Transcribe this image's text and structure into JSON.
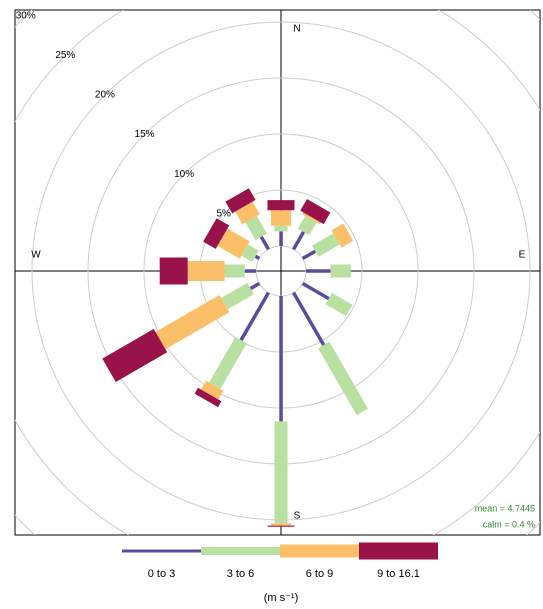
{
  "chart_data": {
    "type": "windrose",
    "categories": [
      0,
      30,
      60,
      90,
      120,
      150,
      180,
      210,
      240,
      270,
      300,
      330
    ],
    "compass": [
      "N",
      "E",
      "S",
      "W"
    ],
    "series": [
      {
        "name": "0 to 3",
        "color": "#5b4a9e",
        "values": [
          1.3,
          1.8,
          1.3,
          2.2,
          2.7,
          5.4,
          11.2,
          4.9,
          0.9,
          1.0,
          0.4,
          1.3
        ]
      },
      {
        "name": "3 to 6",
        "color": "#b8e0a0",
        "values": [
          0.5,
          1.3,
          2.2,
          1.8,
          2.1,
          6.9,
          9.1,
          4.7,
          2.7,
          1.8,
          1.1,
          1.8
        ]
      },
      {
        "name": "6 to 9",
        "color": "#fbbf6a",
        "values": [
          1.4,
          0.2,
          1.2,
          0,
          0,
          0,
          0.2,
          0.9,
          6.6,
          3.3,
          2.3,
          1.3
        ]
      },
      {
        "name": "9 to 16.1",
        "color": "#99124a",
        "values": [
          0.9,
          1.2,
          0,
          0,
          0,
          0,
          0.1,
          0.6,
          5.3,
          2.5,
          1.3,
          1.2
        ]
      }
    ],
    "rlim": [
      0,
      30
    ],
    "rticks": [
      {
        "value": 5,
        "label": "5%"
      },
      {
        "value": 10,
        "label": "10%"
      },
      {
        "value": 15,
        "label": "15%"
      },
      {
        "value": 20,
        "label": "20%"
      },
      {
        "value": 25,
        "label": "25%"
      },
      {
        "value": 30,
        "label": "30%"
      }
    ],
    "mean_label": "mean = 4.7445",
    "calm_label": "calm = 0.4 %",
    "unit_label": "(m s⁻¹)"
  }
}
